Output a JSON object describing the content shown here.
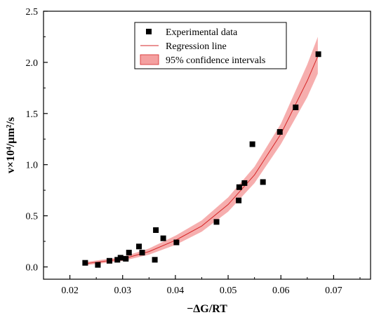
{
  "chart_data": {
    "type": "scatter",
    "xlabel": "−ΔG/RT",
    "ylabel": "v×10⁴/μm²/s",
    "xlim": [
      0.015,
      0.077
    ],
    "ylim": [
      -0.12,
      2.5
    ],
    "x_ticks": [
      "0.02",
      "0.03",
      "0.04",
      "0.05",
      "0.06",
      "0.07"
    ],
    "y_ticks": [
      "0.0",
      "0.5",
      "1.0",
      "1.5",
      "2.0",
      "2.5"
    ],
    "legend_position": "top-center",
    "grid": false,
    "colors": {
      "points": "#000000",
      "regression": "#d62728",
      "confidence_band": "#f4a0a0"
    },
    "series": [
      {
        "name": "Experimental data",
        "kind": "scatter",
        "points": [
          {
            "x": 0.0229,
            "y": 0.04
          },
          {
            "x": 0.0253,
            "y": 0.02
          },
          {
            "x": 0.0275,
            "y": 0.06
          },
          {
            "x": 0.029,
            "y": 0.07
          },
          {
            "x": 0.0296,
            "y": 0.09
          },
          {
            "x": 0.0306,
            "y": 0.08
          },
          {
            "x": 0.0312,
            "y": 0.14
          },
          {
            "x": 0.0331,
            "y": 0.2
          },
          {
            "x": 0.0337,
            "y": 0.14
          },
          {
            "x": 0.0361,
            "y": 0.07
          },
          {
            "x": 0.0363,
            "y": 0.36
          },
          {
            "x": 0.0377,
            "y": 0.28
          },
          {
            "x": 0.0402,
            "y": 0.24
          },
          {
            "x": 0.0478,
            "y": 0.44
          },
          {
            "x": 0.052,
            "y": 0.65
          },
          {
            "x": 0.0521,
            "y": 0.78
          },
          {
            "x": 0.0531,
            "y": 0.82
          },
          {
            "x": 0.0546,
            "y": 1.2
          },
          {
            "x": 0.0566,
            "y": 0.83
          },
          {
            "x": 0.0598,
            "y": 1.32
          },
          {
            "x": 0.0628,
            "y": 1.56
          },
          {
            "x": 0.0671,
            "y": 2.08
          }
        ]
      },
      {
        "name": "Regression line",
        "kind": "line",
        "points": [
          {
            "x": 0.0225,
            "y": 0.029
          },
          {
            "x": 0.03,
            "y": 0.078
          },
          {
            "x": 0.035,
            "y": 0.15
          },
          {
            "x": 0.04,
            "y": 0.26
          },
          {
            "x": 0.045,
            "y": 0.4
          },
          {
            "x": 0.05,
            "y": 0.61
          },
          {
            "x": 0.055,
            "y": 0.9
          },
          {
            "x": 0.06,
            "y": 1.3
          },
          {
            "x": 0.065,
            "y": 1.82
          },
          {
            "x": 0.067,
            "y": 2.06
          }
        ]
      },
      {
        "name": "95% confidence intervals",
        "kind": "band",
        "lower": [
          {
            "x": 0.0225,
            "y": 0.015
          },
          {
            "x": 0.03,
            "y": 0.058
          },
          {
            "x": 0.035,
            "y": 0.12
          },
          {
            "x": 0.04,
            "y": 0.215
          },
          {
            "x": 0.045,
            "y": 0.345
          },
          {
            "x": 0.05,
            "y": 0.54
          },
          {
            "x": 0.055,
            "y": 0.82
          },
          {
            "x": 0.06,
            "y": 1.2
          },
          {
            "x": 0.065,
            "y": 1.66
          },
          {
            "x": 0.067,
            "y": 1.89
          }
        ],
        "upper": [
          {
            "x": 0.0225,
            "y": 0.045
          },
          {
            "x": 0.03,
            "y": 0.098
          },
          {
            "x": 0.035,
            "y": 0.18
          },
          {
            "x": 0.04,
            "y": 0.305
          },
          {
            "x": 0.045,
            "y": 0.455
          },
          {
            "x": 0.05,
            "y": 0.68
          },
          {
            "x": 0.055,
            "y": 0.98
          },
          {
            "x": 0.06,
            "y": 1.4
          },
          {
            "x": 0.065,
            "y": 1.98
          },
          {
            "x": 0.067,
            "y": 2.25
          }
        ]
      }
    ]
  }
}
